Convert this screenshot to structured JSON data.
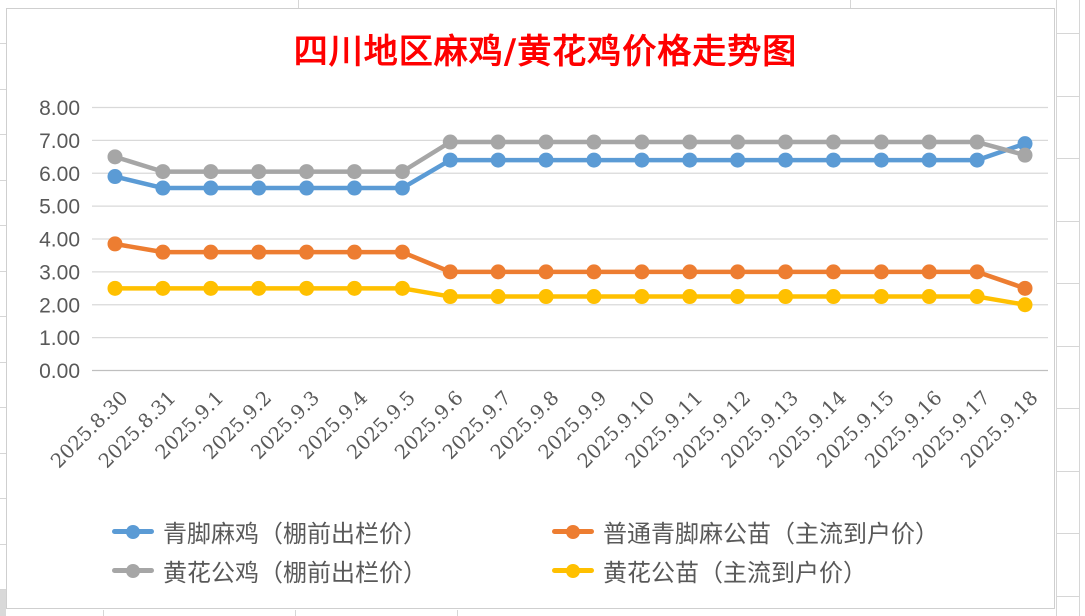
{
  "title": {
    "text": "四川地区麻鸡/黄花鸡价格走势图",
    "color": "#FF0000"
  },
  "colors": {
    "axis_label": "#595959",
    "gridline": "#D9D9D9",
    "axis_line": "#BFBFBF",
    "chart_border": "#CFCFCF"
  },
  "chart_data": {
    "type": "line",
    "title": "四川地区麻鸡/黄花鸡价格走势图",
    "xlabel": "",
    "ylabel": "",
    "ylim": [
      0,
      8
    ],
    "ytick_step": 1,
    "grid": true,
    "legend_position": "bottom",
    "y_tick_labels": [
      "0.00",
      "1.00",
      "2.00",
      "3.00",
      "4.00",
      "5.00",
      "6.00",
      "7.00",
      "8.00"
    ],
    "categories": [
      "2025.8.30",
      "2025.8.31",
      "2025.9.1",
      "2025.9.2",
      "2025.9.3",
      "2025.9.4",
      "2025.9.5",
      "2025.9.6",
      "2025.9.7",
      "2025.9.8",
      "2025.9.9",
      "2025.9.10",
      "2025.9.11",
      "2025.9.12",
      "2025.9.13",
      "2025.9.14",
      "2025.9.15",
      "2025.9.16",
      "2025.9.17",
      "2025.9.18"
    ],
    "series": [
      {
        "name": "青脚麻鸡（棚前出栏价）",
        "color": "#5B9BD5",
        "values": [
          5.9,
          5.55,
          5.55,
          5.55,
          5.55,
          5.55,
          5.55,
          6.4,
          6.4,
          6.4,
          6.4,
          6.4,
          6.4,
          6.4,
          6.4,
          6.4,
          6.4,
          6.4,
          6.4,
          6.9
        ]
      },
      {
        "name": "普通青脚麻公苗（主流到户价）",
        "color": "#ED7D31",
        "values": [
          3.85,
          3.6,
          3.6,
          3.6,
          3.6,
          3.6,
          3.6,
          3.0,
          3.0,
          3.0,
          3.0,
          3.0,
          3.0,
          3.0,
          3.0,
          3.0,
          3.0,
          3.0,
          3.0,
          2.5
        ]
      },
      {
        "name": "黄花公鸡（棚前出栏价）",
        "color": "#A6A6A6",
        "values": [
          6.5,
          6.05,
          6.05,
          6.05,
          6.05,
          6.05,
          6.05,
          6.95,
          6.95,
          6.95,
          6.95,
          6.95,
          6.95,
          6.95,
          6.95,
          6.95,
          6.95,
          6.95,
          6.95,
          6.55
        ]
      },
      {
        "name": "黄花公苗（主流到户价）",
        "color": "#FFC000",
        "values": [
          2.5,
          2.5,
          2.5,
          2.5,
          2.5,
          2.5,
          2.5,
          2.25,
          2.25,
          2.25,
          2.25,
          2.25,
          2.25,
          2.25,
          2.25,
          2.25,
          2.25,
          2.25,
          2.25,
          2.0
        ]
      }
    ]
  }
}
